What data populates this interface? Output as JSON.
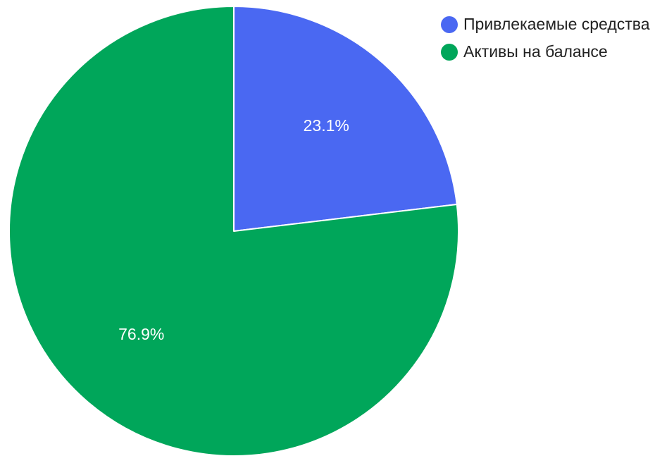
{
  "chart_data": {
    "type": "pie",
    "categories": [
      "Привлекаемые средства",
      "Активы на балансе"
    ],
    "values": [
      23.1,
      76.9
    ],
    "value_labels": [
      "23.1%",
      "76.9%"
    ],
    "colors": [
      "#4a68f2",
      "#00a65a"
    ],
    "legend_position": "top-right",
    "start_angle_deg": 0,
    "direction": "clockwise"
  }
}
